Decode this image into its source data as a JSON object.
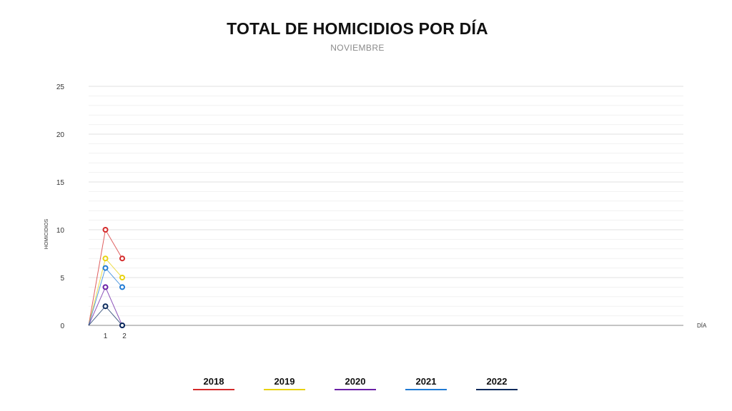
{
  "chart_data": {
    "type": "line",
    "title": "TOTAL DE HOMICIDIOS POR DÍA",
    "subtitle": "NOVIEMBRE",
    "xlabel": "DÍA",
    "ylabel": "HOMICIDIOS",
    "x_ticks": [
      "1",
      "2"
    ],
    "y_ticks": [
      0,
      5,
      10,
      15,
      20,
      25
    ],
    "ylim": [
      0,
      25
    ],
    "grid": true,
    "legend_position": "bottom",
    "x": [
      0,
      1,
      2
    ],
    "series": [
      {
        "name": "2018",
        "color": "#d42a2a",
        "values": [
          0,
          10,
          7
        ]
      },
      {
        "name": "2019",
        "color": "#e8d20f",
        "values": [
          0,
          7,
          5
        ]
      },
      {
        "name": "2020",
        "color": "#6a1fa6",
        "values": [
          0,
          4,
          0
        ]
      },
      {
        "name": "2021",
        "color": "#1f7ad4",
        "values": [
          0,
          6,
          4
        ]
      },
      {
        "name": "2022",
        "color": "#0a2a5c",
        "values": [
          0,
          2,
          0
        ]
      }
    ]
  }
}
